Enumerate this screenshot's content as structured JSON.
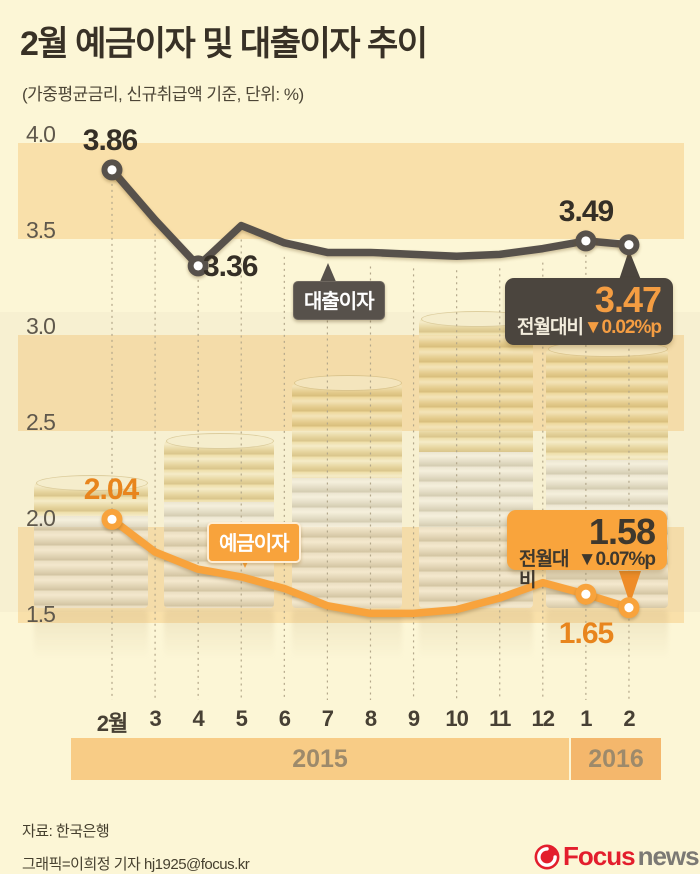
{
  "header": {
    "title": "2월 예금이자 및 대출이자 추이",
    "subtitle": "(가중평균금리, 신규취급액 기준, 단위: %)"
  },
  "chart_data": {
    "type": "line",
    "categories": [
      "2월",
      "3",
      "4",
      "5",
      "6",
      "7",
      "8",
      "9",
      "10",
      "11",
      "12",
      "1",
      "2"
    ],
    "series": [
      {
        "name": "대출이자",
        "color": "#57514b",
        "values": [
          3.86,
          3.6,
          3.36,
          3.57,
          3.48,
          3.43,
          3.43,
          3.42,
          3.41,
          3.42,
          3.45,
          3.49,
          3.47
        ],
        "marker_indices": [
          0,
          2,
          11,
          12
        ]
      },
      {
        "name": "예금이자",
        "color": "#f8a33c",
        "values": [
          2.04,
          1.87,
          1.78,
          1.74,
          1.68,
          1.59,
          1.55,
          1.55,
          1.57,
          1.63,
          1.71,
          1.65,
          1.58
        ],
        "marker_indices": [
          0,
          11,
          12
        ]
      }
    ],
    "ylim": [
      1.5,
      4.0
    ],
    "yticks": [
      "4.0",
      "3.5",
      "3.0",
      "2.5",
      "2.0",
      "1.5"
    ],
    "grid": "vertical-dashed",
    "legend_position": "inline-tooltips",
    "year_bands": [
      {
        "label": "2015",
        "months": 11
      },
      {
        "label": "2016",
        "months": 2
      }
    ]
  },
  "annotations": {
    "loan_first": "3.86",
    "loan_low": "3.36",
    "loan_jan": "3.49",
    "deposit_first": "2.04",
    "deposit_jan": "1.65",
    "loan_tooltip": "대출이자",
    "deposit_tooltip": "예금이자",
    "loan_badge": {
      "value": "3.47",
      "label": "전월대비",
      "delta": "▼0.02%p"
    },
    "deposit_badge": {
      "value": "1.58",
      "label": "전월대비",
      "delta": "▼0.07%p"
    }
  },
  "footer": {
    "source": "자료: 한국은행",
    "credit": "그래픽=이희정 기자 hj1925@focus.kr",
    "logo": {
      "brand": "Focus",
      "suffix": "news"
    }
  },
  "colors": {
    "background": "#fcf6d6",
    "band": "#f6cd86",
    "grid": "#b3a78a",
    "loan_line": "#57514b",
    "deposit_line": "#f8a33c",
    "dark_label": "#352f26",
    "orange_label": "#e8851d",
    "badge_dark_bg": "#4b453e",
    "badge_orange_bg": "#f9a43c",
    "year_2015_bg": "#f8cc86",
    "year_2016_bg": "#f4b76c",
    "logo_red": "#e31e2d",
    "logo_gray": "#7b7974"
  }
}
